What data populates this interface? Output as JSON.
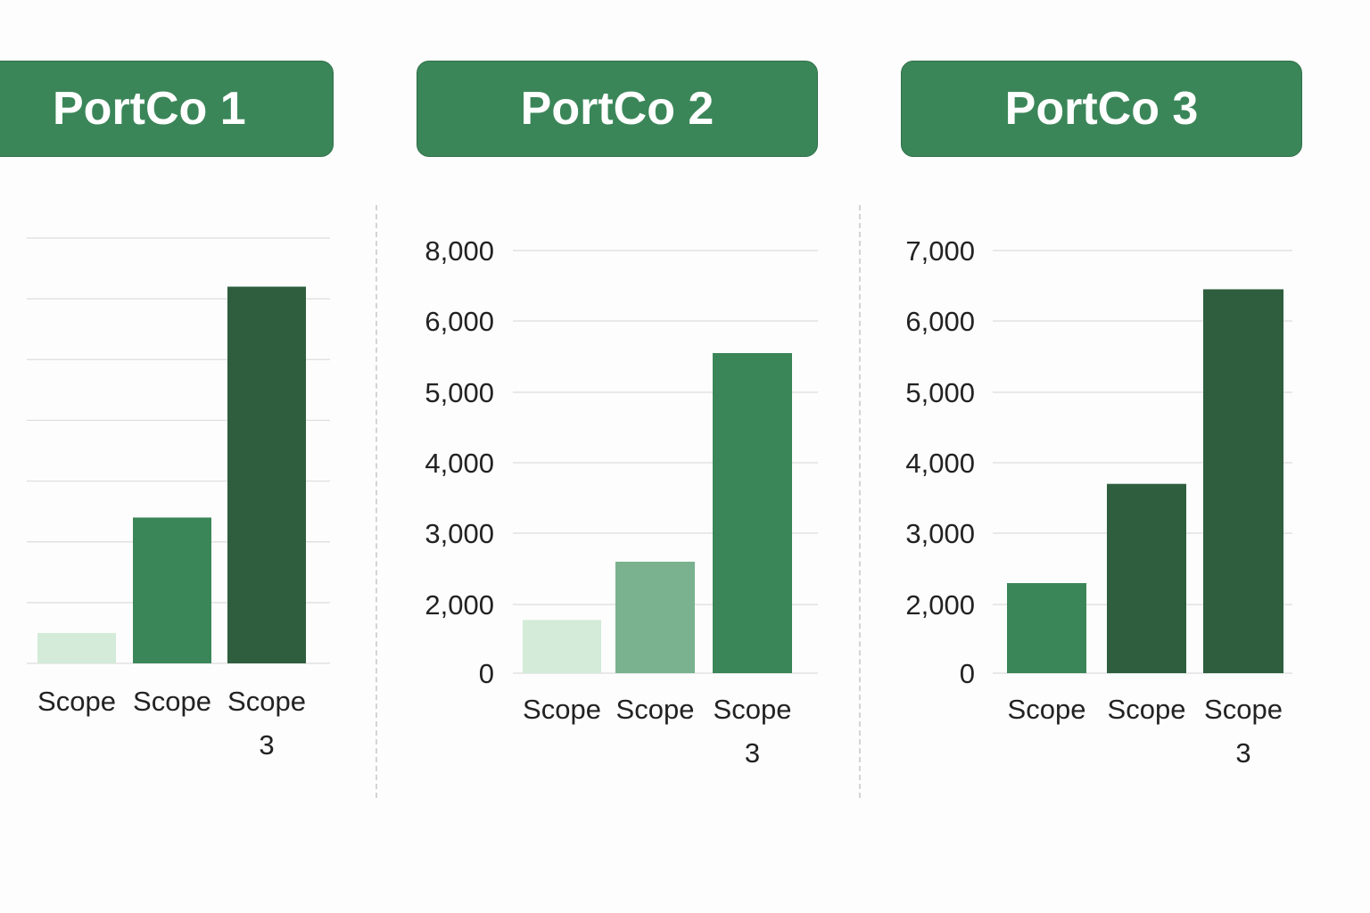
{
  "colors": {
    "header_bg": "#3b8659",
    "bar_light": "#d3ebd8",
    "bar_mid": "#7ab28f",
    "bar_green": "#3b8659",
    "bar_dark": "#2e5e3e",
    "gridline": "#dddddd",
    "text": "#222222"
  },
  "panels": [
    {
      "title": "PortCo 1"
    },
    {
      "title": "PortCo 2"
    },
    {
      "title": "PortCo 3"
    }
  ],
  "chart_data": [
    {
      "type": "bar",
      "title": "PortCo 1",
      "categories": [
        "Scope",
        "Scope",
        "Scope 3"
      ],
      "values": [
        500,
        2400,
        6200
      ],
      "bar_colors": [
        "#d3ebd8",
        "#3b8659",
        "#2e5e3e"
      ],
      "y_ticks": [],
      "ylim": [
        0,
        7000
      ],
      "grid": true
    },
    {
      "type": "bar",
      "title": "PortCo 2",
      "categories": [
        "Scope",
        "Scope",
        "Scope 3"
      ],
      "values": [
        1550,
        2600,
        5550
      ],
      "bar_colors": [
        "#d3ebd8",
        "#7ab28f",
        "#3b8659"
      ],
      "y_ticks": [
        "0",
        "2,000",
        "3,000",
        "4,000",
        "5,000",
        "6,000",
        "8,000"
      ],
      "ylim": [
        0,
        8000
      ],
      "grid": true
    },
    {
      "type": "bar",
      "title": "PortCo 3",
      "categories": [
        "Scope",
        "Scope",
        "Scope 3"
      ],
      "values": [
        2300,
        3700,
        6450
      ],
      "bar_colors": [
        "#3b8659",
        "#2e5e3e",
        "#2e5e3e"
      ],
      "y_ticks": [
        "0",
        "2,000",
        "3,000",
        "4,000",
        "5,000",
        "6,000",
        "7,000"
      ],
      "ylim": [
        0,
        7000
      ],
      "grid": true
    }
  ]
}
